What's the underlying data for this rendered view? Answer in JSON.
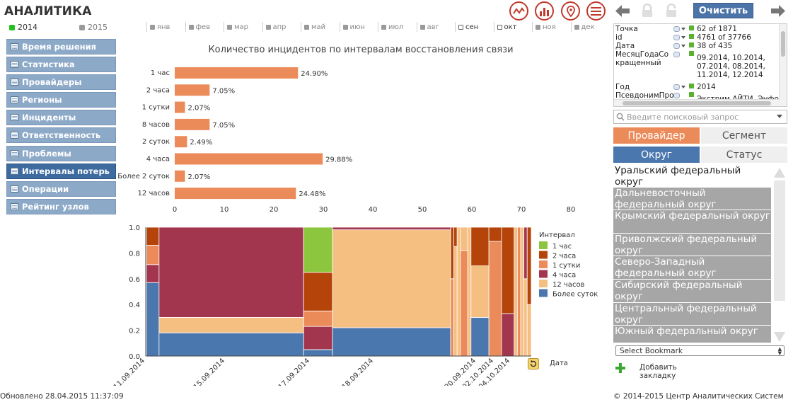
{
  "app": {
    "title": "АНАЛИТИКА",
    "clear_button": "Очистить"
  },
  "years": [
    {
      "label": "2014",
      "selected": true,
      "color": "#22c022"
    },
    {
      "label": "2015",
      "selected": false,
      "color": "#9a9a9a"
    }
  ],
  "months": [
    {
      "label": "янв",
      "selected": false
    },
    {
      "label": "фев",
      "selected": false
    },
    {
      "label": "мар",
      "selected": false
    },
    {
      "label": "апр",
      "selected": false
    },
    {
      "label": "май",
      "selected": false
    },
    {
      "label": "июн",
      "selected": false
    },
    {
      "label": "июл",
      "selected": false
    },
    {
      "label": "авг",
      "selected": false
    },
    {
      "label": "сен",
      "selected": true
    },
    {
      "label": "окт",
      "selected": true
    },
    {
      "label": "ноя",
      "selected": false
    },
    {
      "label": "дек",
      "selected": false
    }
  ],
  "sidebar": {
    "items": [
      {
        "label": "Время решения",
        "active": false
      },
      {
        "label": "Статистика",
        "active": false
      },
      {
        "label": "Провайдеры",
        "active": false
      },
      {
        "label": "Регионы",
        "active": false
      },
      {
        "label": "Инциденты",
        "active": false
      },
      {
        "label": "Ответственность",
        "active": false
      },
      {
        "label": "Проблемы",
        "active": false
      },
      {
        "label": "Интервалы потерь",
        "active": true
      },
      {
        "label": "Операции",
        "active": false
      },
      {
        "label": "Рейтинг узлов",
        "active": false
      }
    ]
  },
  "selections": [
    {
      "field": "Точка",
      "value": "62 of 1871"
    },
    {
      "field": "id",
      "value": "4761 of 37766"
    },
    {
      "field": "Дата",
      "value": "38 of 435"
    },
    {
      "field": "МесяцГодаСокращенный",
      "value": "09.2014, 10.2014, 07.2014, 08.2014, 11.2014, 12.2014"
    },
    {
      "field": "Год",
      "value": "2014"
    },
    {
      "field": "ПсевдонимПро",
      "value": "Экстрим АЙТИ, Энфорт"
    }
  ],
  "search": {
    "placeholder": "Введите поисковый запрос"
  },
  "tabs": [
    {
      "label": "Провайдер",
      "style": "orange"
    },
    {
      "label": "Сегмент",
      "style": "gray"
    },
    {
      "label": "Округ",
      "style": "blue"
    },
    {
      "label": "Статус",
      "style": "gray"
    }
  ],
  "districts": {
    "selected": [
      "Уральский федеральный округ"
    ],
    "excluded": [
      "Дальневосточный федеральный округ",
      "Крымский федеральный округ",
      "Приволжский федеральный округ",
      "Северо-Западный федеральный округ",
      "Сибирский федеральный округ",
      "Центральный федеральный округ",
      "Южный федеральный округ"
    ]
  },
  "bookmark": {
    "select_label": "Select Bookmark",
    "add_label": "Добавить закладку"
  },
  "footer": {
    "updated": "Обновлено 28.04.2015 11:37:09",
    "copyright": "© 2014-2015 Центр Аналитических Систем"
  },
  "icons": [
    "line-chart-icon",
    "bar-chart-icon",
    "map-pin-icon",
    "menu-icon",
    "back-arrow-icon",
    "lock-icon",
    "unlock-icon",
    "forward-arrow-icon",
    "search-icon",
    "plus-icon",
    "refresh-icon"
  ],
  "colors": {
    "accent_red": "#c0392b",
    "bar_orange": "#ec8b5a",
    "button_blue": "#4c74a8"
  },
  "chart_data": [
    {
      "type": "bar",
      "orientation": "horizontal",
      "title": "Количество инцидентов по интервалам восстановления связи",
      "categories": [
        "1 час",
        "2 часа",
        "1 сутки",
        "8 часов",
        "2 суток",
        "4 часа",
        "Более 2 суток",
        "12 часов"
      ],
      "values": [
        24.9,
        7.05,
        2.07,
        7.05,
        2.49,
        29.88,
        2.07,
        24.48
      ],
      "value_labels": [
        "24.90%",
        "7.05%",
        "2.07%",
        "7.05%",
        "2.49%",
        "29.88%",
        "2.07%",
        "24.48%"
      ],
      "xlim": [
        0,
        80
      ],
      "xticks": [
        0,
        10,
        20,
        30,
        40,
        50,
        60,
        70,
        80
      ],
      "grid": false,
      "color": "#ec8b5a"
    },
    {
      "type": "mekko",
      "legend_title": "Интервал",
      "xlabel": "Дата",
      "ylim": [
        0,
        1
      ],
      "yticks": [
        "0.0",
        "0.2",
        "0.4",
        "0.6",
        "0.8",
        "1.0"
      ],
      "x_tick_labels": [
        "11.09.2014",
        "15.09.2014",
        "17.09.2014",
        "18.09.2014",
        "30.09.2014",
        "02.10.2014",
        "04.10.2014"
      ],
      "legend_placement": "right",
      "series": [
        {
          "name": "1 час",
          "color": "#8cc63f"
        },
        {
          "name": "2 часа",
          "color": "#b5440a"
        },
        {
          "name": "1 сутки",
          "color": "#ec8b5a"
        },
        {
          "name": "4 часа",
          "color": "#a3364f"
        },
        {
          "name": "12 часов",
          "color": "#f5bf82"
        },
        {
          "name": "Более суток",
          "color": "#4a77ad"
        }
      ],
      "columns": [
        {
          "share": 0.031,
          "segments": [
            {
              "s": "Более суток",
              "v": 0.57
            },
            {
              "s": "4 часа",
              "v": 0.14
            },
            {
              "s": "1 сутки",
              "v": 0.15
            },
            {
              "s": "2 часа",
              "v": 0.14
            }
          ]
        },
        {
          "share": 0.355,
          "segments": [
            {
              "s": "Более суток",
              "v": 0.18
            },
            {
              "s": "12 часов",
              "v": 0.12
            },
            {
              "s": "4 часа",
              "v": 0.7
            }
          ]
        },
        {
          "share": 0.071,
          "segments": [
            {
              "s": "Более суток",
              "v": 0.05
            },
            {
              "s": "4 часа",
              "v": 0.18
            },
            {
              "s": "1 сутки",
              "v": 0.12
            },
            {
              "s": "2 часа",
              "v": 0.3
            },
            {
              "s": "1 час",
              "v": 0.35
            }
          ]
        },
        {
          "share": 0.29,
          "segments": [
            {
              "s": "Более суток",
              "v": 0.22
            },
            {
              "s": "12 часов",
              "v": 0.76
            },
            {
              "s": "4 часа",
              "v": 0.02
            }
          ]
        },
        {
          "share": 0.008,
          "segments": [
            {
              "s": "1 сутки",
              "v": 0.6
            },
            {
              "s": "2 часа",
              "v": 0.4
            }
          ]
        },
        {
          "share": 0.008,
          "segments": [
            {
              "s": "12 часов",
              "v": 0.85
            },
            {
              "s": "2 часа",
              "v": 0.15
            }
          ]
        },
        {
          "share": 0.008,
          "segments": [
            {
              "s": "12 часов",
              "v": 1.0
            }
          ]
        },
        {
          "share": 0.018,
          "segments": [
            {
              "s": "1 сутки",
              "v": 0.82
            },
            {
              "s": "12 часов",
              "v": 0.18
            }
          ]
        },
        {
          "share": 0.008,
          "segments": [
            {
              "s": "12 часов",
              "v": 1.0
            }
          ]
        },
        {
          "share": 0.044,
          "segments": [
            {
              "s": "Более суток",
              "v": 0.3
            },
            {
              "s": "12 часов",
              "v": 0.4
            },
            {
              "s": "2 часа",
              "v": 0.3
            }
          ]
        },
        {
          "share": 0.031,
          "segments": [
            {
              "s": "1 сутки",
              "v": 0.89
            },
            {
              "s": "2 часа",
              "v": 0.11
            }
          ]
        },
        {
          "share": 0.031,
          "segments": [
            {
              "s": "4 часа",
              "v": 0.33
            },
            {
              "s": "2 часа",
              "v": 0.67
            }
          ]
        },
        {
          "share": 0.008,
          "segments": [
            {
              "s": "12 часов",
              "v": 1.0
            }
          ]
        },
        {
          "share": 0.008,
          "segments": [
            {
              "s": "1 сутки",
              "v": 1.0
            }
          ]
        },
        {
          "share": 0.008,
          "segments": [
            {
              "s": "12 часов",
              "v": 1.0
            }
          ]
        },
        {
          "share": 0.008,
          "segments": [
            {
              "s": "12 часов",
              "v": 0.6
            },
            {
              "s": "4 часа",
              "v": 0.4
            }
          ]
        },
        {
          "share": 0.01,
          "segments": [
            {
              "s": "12 часов",
              "v": 0.4
            },
            {
              "s": "2 часа",
              "v": 0.6
            }
          ]
        }
      ]
    }
  ]
}
